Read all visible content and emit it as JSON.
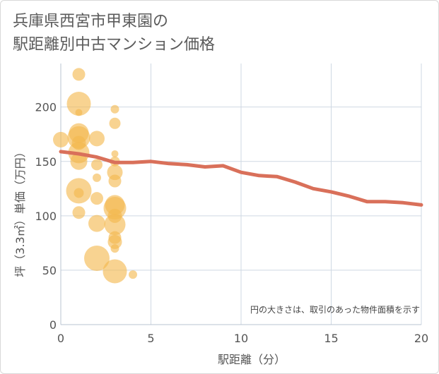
{
  "chart_data": {
    "type": "scatter",
    "title_lines": [
      "兵庫県西宮市甲東園の",
      "駅距離別中古マンション価格"
    ],
    "xlabel": "駅距離（分）",
    "ylabel": "坪（3.3㎡）単価（万円）",
    "note": "円の大きさは、取引のあった物件面積を示す",
    "xlim": [
      0,
      20
    ],
    "ylim": [
      0,
      240
    ],
    "xticks": [
      0,
      5,
      10,
      15,
      20
    ],
    "yticks": [
      0,
      50,
      100,
      150,
      200
    ],
    "grid": true,
    "colors": {
      "bubble": "#f3b84e",
      "line": "#d9705a",
      "grid": "#cfd8e3"
    },
    "points": [
      {
        "x": 0,
        "y": 170,
        "size": 11
      },
      {
        "x": 1,
        "y": 230,
        "size": 9
      },
      {
        "x": 1,
        "y": 203,
        "size": 17
      },
      {
        "x": 1,
        "y": 195,
        "size": 5
      },
      {
        "x": 1,
        "y": 176,
        "size": 14
      },
      {
        "x": 1,
        "y": 172,
        "size": 16
      },
      {
        "x": 1,
        "y": 167,
        "size": 10
      },
      {
        "x": 1,
        "y": 158,
        "size": 15
      },
      {
        "x": 1,
        "y": 150,
        "size": 12
      },
      {
        "x": 1,
        "y": 123,
        "size": 18
      },
      {
        "x": 1,
        "y": 121,
        "size": 7
      },
      {
        "x": 1,
        "y": 103,
        "size": 9
      },
      {
        "x": 2,
        "y": 171,
        "size": 11
      },
      {
        "x": 2,
        "y": 147,
        "size": 8
      },
      {
        "x": 2,
        "y": 135,
        "size": 6
      },
      {
        "x": 2,
        "y": 116,
        "size": 9
      },
      {
        "x": 2,
        "y": 93,
        "size": 12
      },
      {
        "x": 2,
        "y": 61,
        "size": 18
      },
      {
        "x": 3,
        "y": 198,
        "size": 6
      },
      {
        "x": 3,
        "y": 185,
        "size": 8
      },
      {
        "x": 3,
        "y": 157,
        "size": 5
      },
      {
        "x": 3,
        "y": 150,
        "size": 7
      },
      {
        "x": 3,
        "y": 140,
        "size": 11
      },
      {
        "x": 3,
        "y": 132,
        "size": 9
      },
      {
        "x": 3,
        "y": 110,
        "size": 14
      },
      {
        "x": 3,
        "y": 107,
        "size": 16
      },
      {
        "x": 3,
        "y": 100,
        "size": 10
      },
      {
        "x": 3,
        "y": 92,
        "size": 15
      },
      {
        "x": 3,
        "y": 80,
        "size": 9
      },
      {
        "x": 3,
        "y": 76,
        "size": 10
      },
      {
        "x": 3,
        "y": 70,
        "size": 6
      },
      {
        "x": 3,
        "y": 49,
        "size": 17
      },
      {
        "x": 4,
        "y": 46,
        "size": 6
      }
    ],
    "series": [
      {
        "x": [
          0,
          1,
          2,
          3,
          4,
          5,
          6,
          7,
          8,
          9,
          10,
          11,
          12,
          13,
          14,
          15,
          16,
          17,
          18,
          19,
          20
        ],
        "values": [
          159,
          157,
          154,
          149,
          149,
          150,
          148,
          147,
          145,
          146,
          140,
          137,
          136,
          131,
          125,
          122,
          118,
          113,
          113,
          112,
          110
        ]
      }
    ]
  }
}
